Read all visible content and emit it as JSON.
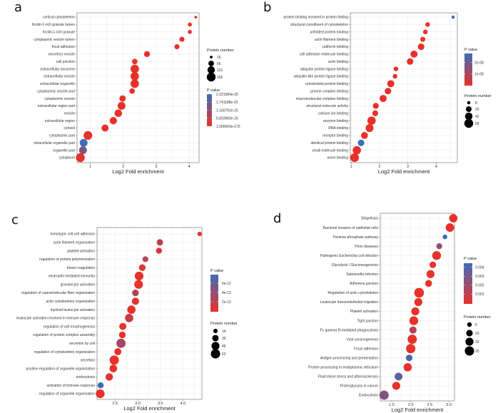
{
  "colors": {
    "low_p": "#e8312a",
    "high_p": "#3d6db8",
    "grid": "#ebebeb",
    "frame": "#8c8c8c"
  },
  "chart_data": [
    {
      "type": "scatter",
      "panel": "a",
      "xlabel": "Log2 Fold enrichment",
      "xticks": [
        "1",
        "2",
        "3",
        "4"
      ],
      "xtick_values": [
        1,
        2,
        3,
        4
      ],
      "xlim": [
        0.6,
        4.3
      ],
      "size_legend_title": "Protein number",
      "size_legend": [
        "16",
        "66",
        "116",
        "166"
      ],
      "size_values": [
        16,
        66,
        116,
        166
      ],
      "color_legend_title": "P value",
      "color_legend": [
        "2.321584e-25",
        "1.741188e-25",
        "1.160792e-25",
        "5.803960e-26",
        "1.000000e-176"
      ],
      "color_legend_fractions": [
        1,
        0.75,
        0.5,
        0.25,
        0
      ],
      "points": [
        {
          "term": "cortical cytoskeleton",
          "x": 4.2,
          "n": 16,
          "p": 0
        },
        {
          "term": "ficolin-1-rich granule lumen",
          "x": 4.02,
          "n": 35,
          "p": 0
        },
        {
          "term": "ficolin-1-rich granule",
          "x": 4.02,
          "n": 35,
          "p": 0
        },
        {
          "term": "cytoplasmic vesicle lumen",
          "x": 3.78,
          "n": 55,
          "p": 0
        },
        {
          "term": "focal adhesion",
          "x": 3.63,
          "n": 55,
          "p": 0
        },
        {
          "term": "secretory vesicle",
          "x": 2.72,
          "n": 75,
          "p": 0
        },
        {
          "term": "cell junction",
          "x": 2.35,
          "n": 65,
          "p": 0
        },
        {
          "term": "extracellular exosome",
          "x": 2.35,
          "n": 150,
          "p": 0
        },
        {
          "term": "extracellular vesicle",
          "x": 2.35,
          "n": 150,
          "p": 0
        },
        {
          "term": "extracellular organelle",
          "x": 2.35,
          "n": 150,
          "p": 0
        },
        {
          "term": "cytoplasmic vesicle part",
          "x": 2.27,
          "n": 65,
          "p": 0
        },
        {
          "term": "cytoplasmic vesicle",
          "x": 1.98,
          "n": 85,
          "p": 0
        },
        {
          "term": "extracellular region part",
          "x": 1.95,
          "n": 130,
          "p": 0
        },
        {
          "term": "vesicle",
          "x": 1.85,
          "n": 120,
          "p": 0
        },
        {
          "term": "extracellular region",
          "x": 1.7,
          "n": 115,
          "p": 0
        },
        {
          "term": "cytosol",
          "x": 1.45,
          "n": 105,
          "p": 0
        },
        {
          "term": "cytoplasmic part",
          "x": 0.93,
          "n": 160,
          "p": 0
        },
        {
          "term": "intracellular organelle part",
          "x": 0.8,
          "n": 130,
          "p": 1
        },
        {
          "term": "organelle part",
          "x": 0.78,
          "n": 130,
          "p": 0.6
        },
        {
          "term": "cytoplasm",
          "x": 0.7,
          "n": 166,
          "p": 0
        }
      ]
    },
    {
      "type": "scatter",
      "panel": "b",
      "xlabel": "Log2 Fold enrichment",
      "xticks": [
        "1",
        "2",
        "3",
        "4"
      ],
      "xtick_values": [
        1,
        2,
        3,
        4
      ],
      "xlim": [
        0.97,
        4.75
      ],
      "size_legend_title": "Protein number",
      "size_legend": [
        "8",
        "25",
        "42",
        "59"
      ],
      "size_values": [
        8,
        25,
        42,
        59
      ],
      "color_legend_title": "P value",
      "color_legend": [
        "2e-08",
        "1e-08"
      ],
      "color_legend_fractions": [
        0.72,
        0.36
      ],
      "points": [
        {
          "term": "protein binding involved in protein folding",
          "x": 4.6,
          "n": 8,
          "p": 1
        },
        {
          "term": "structural constituent of cytoskeleton",
          "x": 3.7,
          "n": 16,
          "p": 0
        },
        {
          "term": "unfolded protein binding",
          "x": 3.62,
          "n": 16,
          "p": 0
        },
        {
          "term": "actin filament binding",
          "x": 3.53,
          "n": 19,
          "p": 0
        },
        {
          "term": "cadherin binding",
          "x": 3.47,
          "n": 32,
          "p": 0
        },
        {
          "term": "cell adhesion molecule binding",
          "x": 3.22,
          "n": 38,
          "p": 0
        },
        {
          "term": "actin binding",
          "x": 3.08,
          "n": 32,
          "p": 0
        },
        {
          "term": "ubiquitin protein ligase binding",
          "x": 2.58,
          "n": 16,
          "p": 0
        },
        {
          "term": "ubiquitin-like protein ligase binding",
          "x": 2.55,
          "n": 16,
          "p": 0
        },
        {
          "term": "cytoskeletal protein binding",
          "x": 2.4,
          "n": 38,
          "p": 0
        },
        {
          "term": "protein complex binding",
          "x": 2.3,
          "n": 32,
          "p": 0
        },
        {
          "term": "macromolecular complex binding",
          "x": 2.13,
          "n": 38,
          "p": 0
        },
        {
          "term": "structural molecule activity",
          "x": 1.87,
          "n": 26,
          "p": 0
        },
        {
          "term": "calcium ion binding",
          "x": 1.85,
          "n": 26,
          "p": 0
        },
        {
          "term": "enzyme binding",
          "x": 1.72,
          "n": 52,
          "p": 0
        },
        {
          "term": "RNA binding",
          "x": 1.65,
          "n": 47,
          "p": 0
        },
        {
          "term": "receptor binding",
          "x": 1.47,
          "n": 36,
          "p": 0
        },
        {
          "term": "identical protein binding",
          "x": 1.35,
          "n": 32,
          "p": 1
        },
        {
          "term": "small molecule binding",
          "x": 1.2,
          "n": 52,
          "p": 0
        },
        {
          "term": "anion binding",
          "x": 1.12,
          "n": 57,
          "p": 0
        }
      ]
    },
    {
      "type": "scatter",
      "panel": "c",
      "xlabel": "Log2 Fold enrichment",
      "xticks": [
        "2.5",
        "3.0",
        "3.5",
        "4.0"
      ],
      "xtick_values": [
        2.5,
        3.0,
        3.5,
        4.0
      ],
      "xlim": [
        2.1,
        4.42
      ],
      "size_legend_title": "Protein number",
      "size_legend": [
        "14",
        "30",
        "46",
        "62"
      ],
      "size_values": [
        14,
        30,
        46,
        62
      ],
      "color_legend_title": "P value",
      "color_legend": [
        "6e-12",
        "4e-12",
        "2e-12"
      ],
      "color_legend_fractions": [
        0.77,
        0.52,
        0.27
      ],
      "points": [
        {
          "term": "homotypic cell-cell adhesion",
          "x": 4.37,
          "n": 14,
          "p": 0
        },
        {
          "term": "actin filament organization",
          "x": 3.49,
          "n": 30,
          "p": 0.25
        },
        {
          "term": "platelet activation",
          "x": 3.47,
          "n": 26,
          "p": 0.05
        },
        {
          "term": "regulation of protein polymerization",
          "x": 3.17,
          "n": 24,
          "p": 0.3
        },
        {
          "term": "blood coagulation",
          "x": 3.1,
          "n": 32,
          "p": 0.05
        },
        {
          "term": "neutrophil mediated immunity",
          "x": 3.03,
          "n": 55,
          "p": 0
        },
        {
          "term": "granulocyte activation",
          "x": 3.02,
          "n": 55,
          "p": 0
        },
        {
          "term": "regulation of supramolecular fiber organization",
          "x": 2.95,
          "n": 32,
          "p": 0.35
        },
        {
          "term": "actin cytoskeleton organization",
          "x": 2.95,
          "n": 38,
          "p": 0.05
        },
        {
          "term": "myeloid leukocyte activation",
          "x": 2.86,
          "n": 50,
          "p": 0
        },
        {
          "term": "leukocyte activation involved in immune response",
          "x": 2.81,
          "n": 50,
          "p": 0.2
        },
        {
          "term": "regulation of cell morphogenesis",
          "x": 2.67,
          "n": 36,
          "p": 0
        },
        {
          "term": "regulation of protein complex assembly",
          "x": 2.66,
          "n": 32,
          "p": 0
        },
        {
          "term": "secretion by cell",
          "x": 2.63,
          "n": 62,
          "p": 0.4
        },
        {
          "term": "regulation of cytoskeleton organization",
          "x": 2.56,
          "n": 36,
          "p": 0
        },
        {
          "term": "secretion",
          "x": 2.48,
          "n": 62,
          "p": 0
        },
        {
          "term": "positive regulation of organelle organization",
          "x": 2.46,
          "n": 42,
          "p": 0
        },
        {
          "term": "endocytosis",
          "x": 2.37,
          "n": 40,
          "p": 0.05
        },
        {
          "term": "activation of immune response",
          "x": 2.18,
          "n": 26,
          "p": 1
        },
        {
          "term": "regulation of organelle organization",
          "x": 2.17,
          "n": 56,
          "p": 0
        }
      ]
    },
    {
      "type": "scatter",
      "panel": "d",
      "xlabel": "Log2 Fold enrichment",
      "xticks": [
        "1.5",
        "2.0",
        "2.5",
        "3.0"
      ],
      "xtick_values": [
        1.5,
        2.0,
        2.5,
        3.0
      ],
      "xlim": [
        1.2,
        3.15
      ],
      "size_legend_title": "Protein number",
      "size_legend": [
        "5",
        "10",
        "15",
        "20"
      ],
      "size_values": [
        5,
        10,
        15,
        20
      ],
      "color_legend_title": "P value",
      "color_legend": [
        "0.004",
        "0.003",
        "0.002",
        "0.001"
      ],
      "color_legend_fractions": [
        0.9,
        0.68,
        0.46,
        0.24
      ],
      "points": [
        {
          "term": "Shigellosis",
          "x": 3.12,
          "n": 16,
          "p": 0
        },
        {
          "term": "Bacterial invasion of epithelial cells",
          "x": 3.03,
          "n": 17,
          "p": 0
        },
        {
          "term": "Pentose phosphate pathway",
          "x": 2.9,
          "n": 5,
          "p": 1
        },
        {
          "term": "Prion diseases",
          "x": 2.75,
          "n": 8,
          "p": 0.5
        },
        {
          "term": "Pathogenic Escherichia coli infection",
          "x": 2.68,
          "n": 18,
          "p": 0
        },
        {
          "term": "Glycolysis / Gluconeogenesis",
          "x": 2.58,
          "n": 10,
          "p": 0
        },
        {
          "term": "Salmonella infection",
          "x": 2.52,
          "n": 15,
          "p": 0
        },
        {
          "term": "Adherens junction",
          "x": 2.47,
          "n": 11,
          "p": 0
        },
        {
          "term": "Regulation of actin cytoskeleton",
          "x": 2.22,
          "n": 22,
          "p": 0
        },
        {
          "term": "Leukocyte transendothelial migration",
          "x": 2.2,
          "n": 15,
          "p": 0
        },
        {
          "term": "Platelet activation",
          "x": 2.12,
          "n": 15,
          "p": 0
        },
        {
          "term": "Tight junction",
          "x": 2.08,
          "n": 18,
          "p": 0
        },
        {
          "term": "Fc gamma R-mediated phagocytosis",
          "x": 2.06,
          "n": 12,
          "p": 0.3
        },
        {
          "term": "Viral carcinogenesis",
          "x": 2.04,
          "n": 20,
          "p": 0
        },
        {
          "term": "Focal adhesion",
          "x": 2.0,
          "n": 20,
          "p": 0
        },
        {
          "term": "Antigen processing and presentation",
          "x": 1.96,
          "n": 10,
          "p": 0.9
        },
        {
          "term": "Protein processing in endoplasmic reticulum",
          "x": 1.92,
          "n": 16,
          "p": 0
        },
        {
          "term": "Fluid shear stress and atherosclerosis",
          "x": 1.68,
          "n": 14,
          "p": 0.8
        },
        {
          "term": "Proteoglycans in cancer",
          "x": 1.62,
          "n": 15,
          "p": 0
        },
        {
          "term": "Endocytosis",
          "x": 1.3,
          "n": 20,
          "p": 0.6
        }
      ]
    }
  ]
}
